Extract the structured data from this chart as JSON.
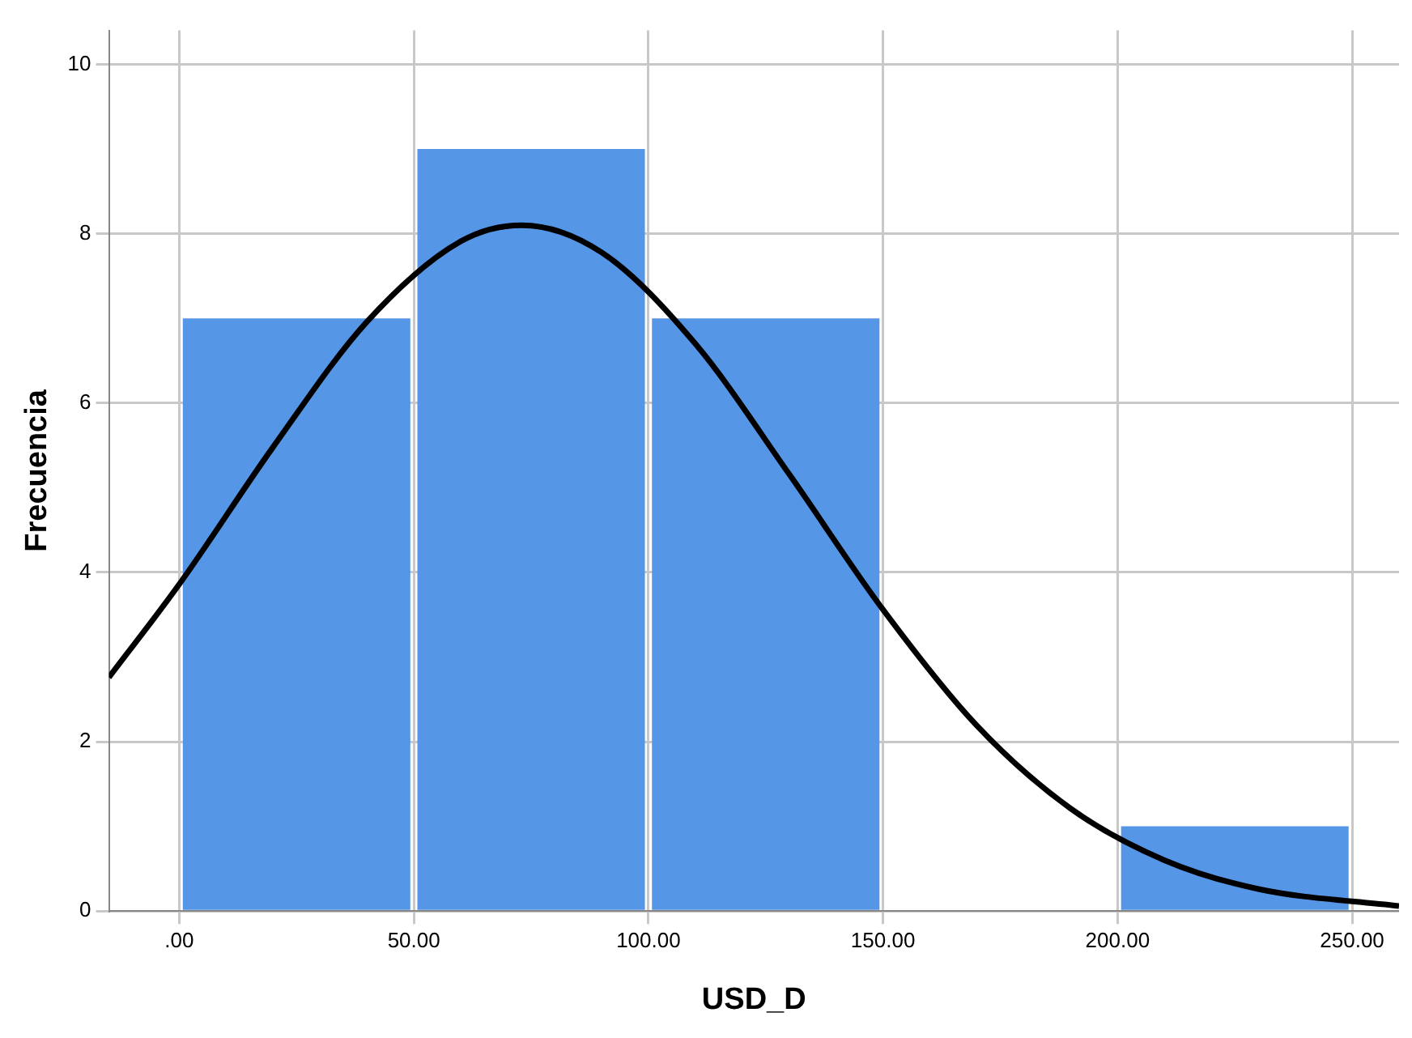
{
  "chart_data": {
    "type": "histogram",
    "xlabel": "USD_D",
    "ylabel": "Frecuencia",
    "bins": [
      0,
      50,
      100,
      150,
      200,
      250
    ],
    "values": [
      7,
      9,
      7,
      0,
      1
    ],
    "color": "#5596e6",
    "series": [
      {
        "type": "line",
        "color": "#000000",
        "x": [
          -15,
          0,
          20,
          40,
          60,
          73,
          90,
          110,
          130,
          150,
          170,
          190,
          210,
          230,
          260
        ],
        "values": [
          2.76,
          3.86,
          5.48,
          6.96,
          7.91,
          8.1,
          7.78,
          6.7,
          5.16,
          3.56,
          2.19,
          1.21,
          0.6,
          0.26,
          0.06
        ]
      }
    ],
    "xlim": [
      -15,
      260
    ],
    "xticks": [
      {
        "value": 0,
        "label": ".00"
      },
      {
        "value": 50,
        "label": "50.00"
      },
      {
        "value": 100,
        "label": "100.00"
      },
      {
        "value": 150,
        "label": "150.00"
      },
      {
        "value": 200,
        "label": "200.00"
      },
      {
        "value": 250,
        "label": "250.00"
      }
    ],
    "ylim": [
      0,
      10.4
    ],
    "yticks": [
      0,
      2,
      4,
      6,
      8,
      10
    ],
    "grid": true,
    "legend": false
  }
}
